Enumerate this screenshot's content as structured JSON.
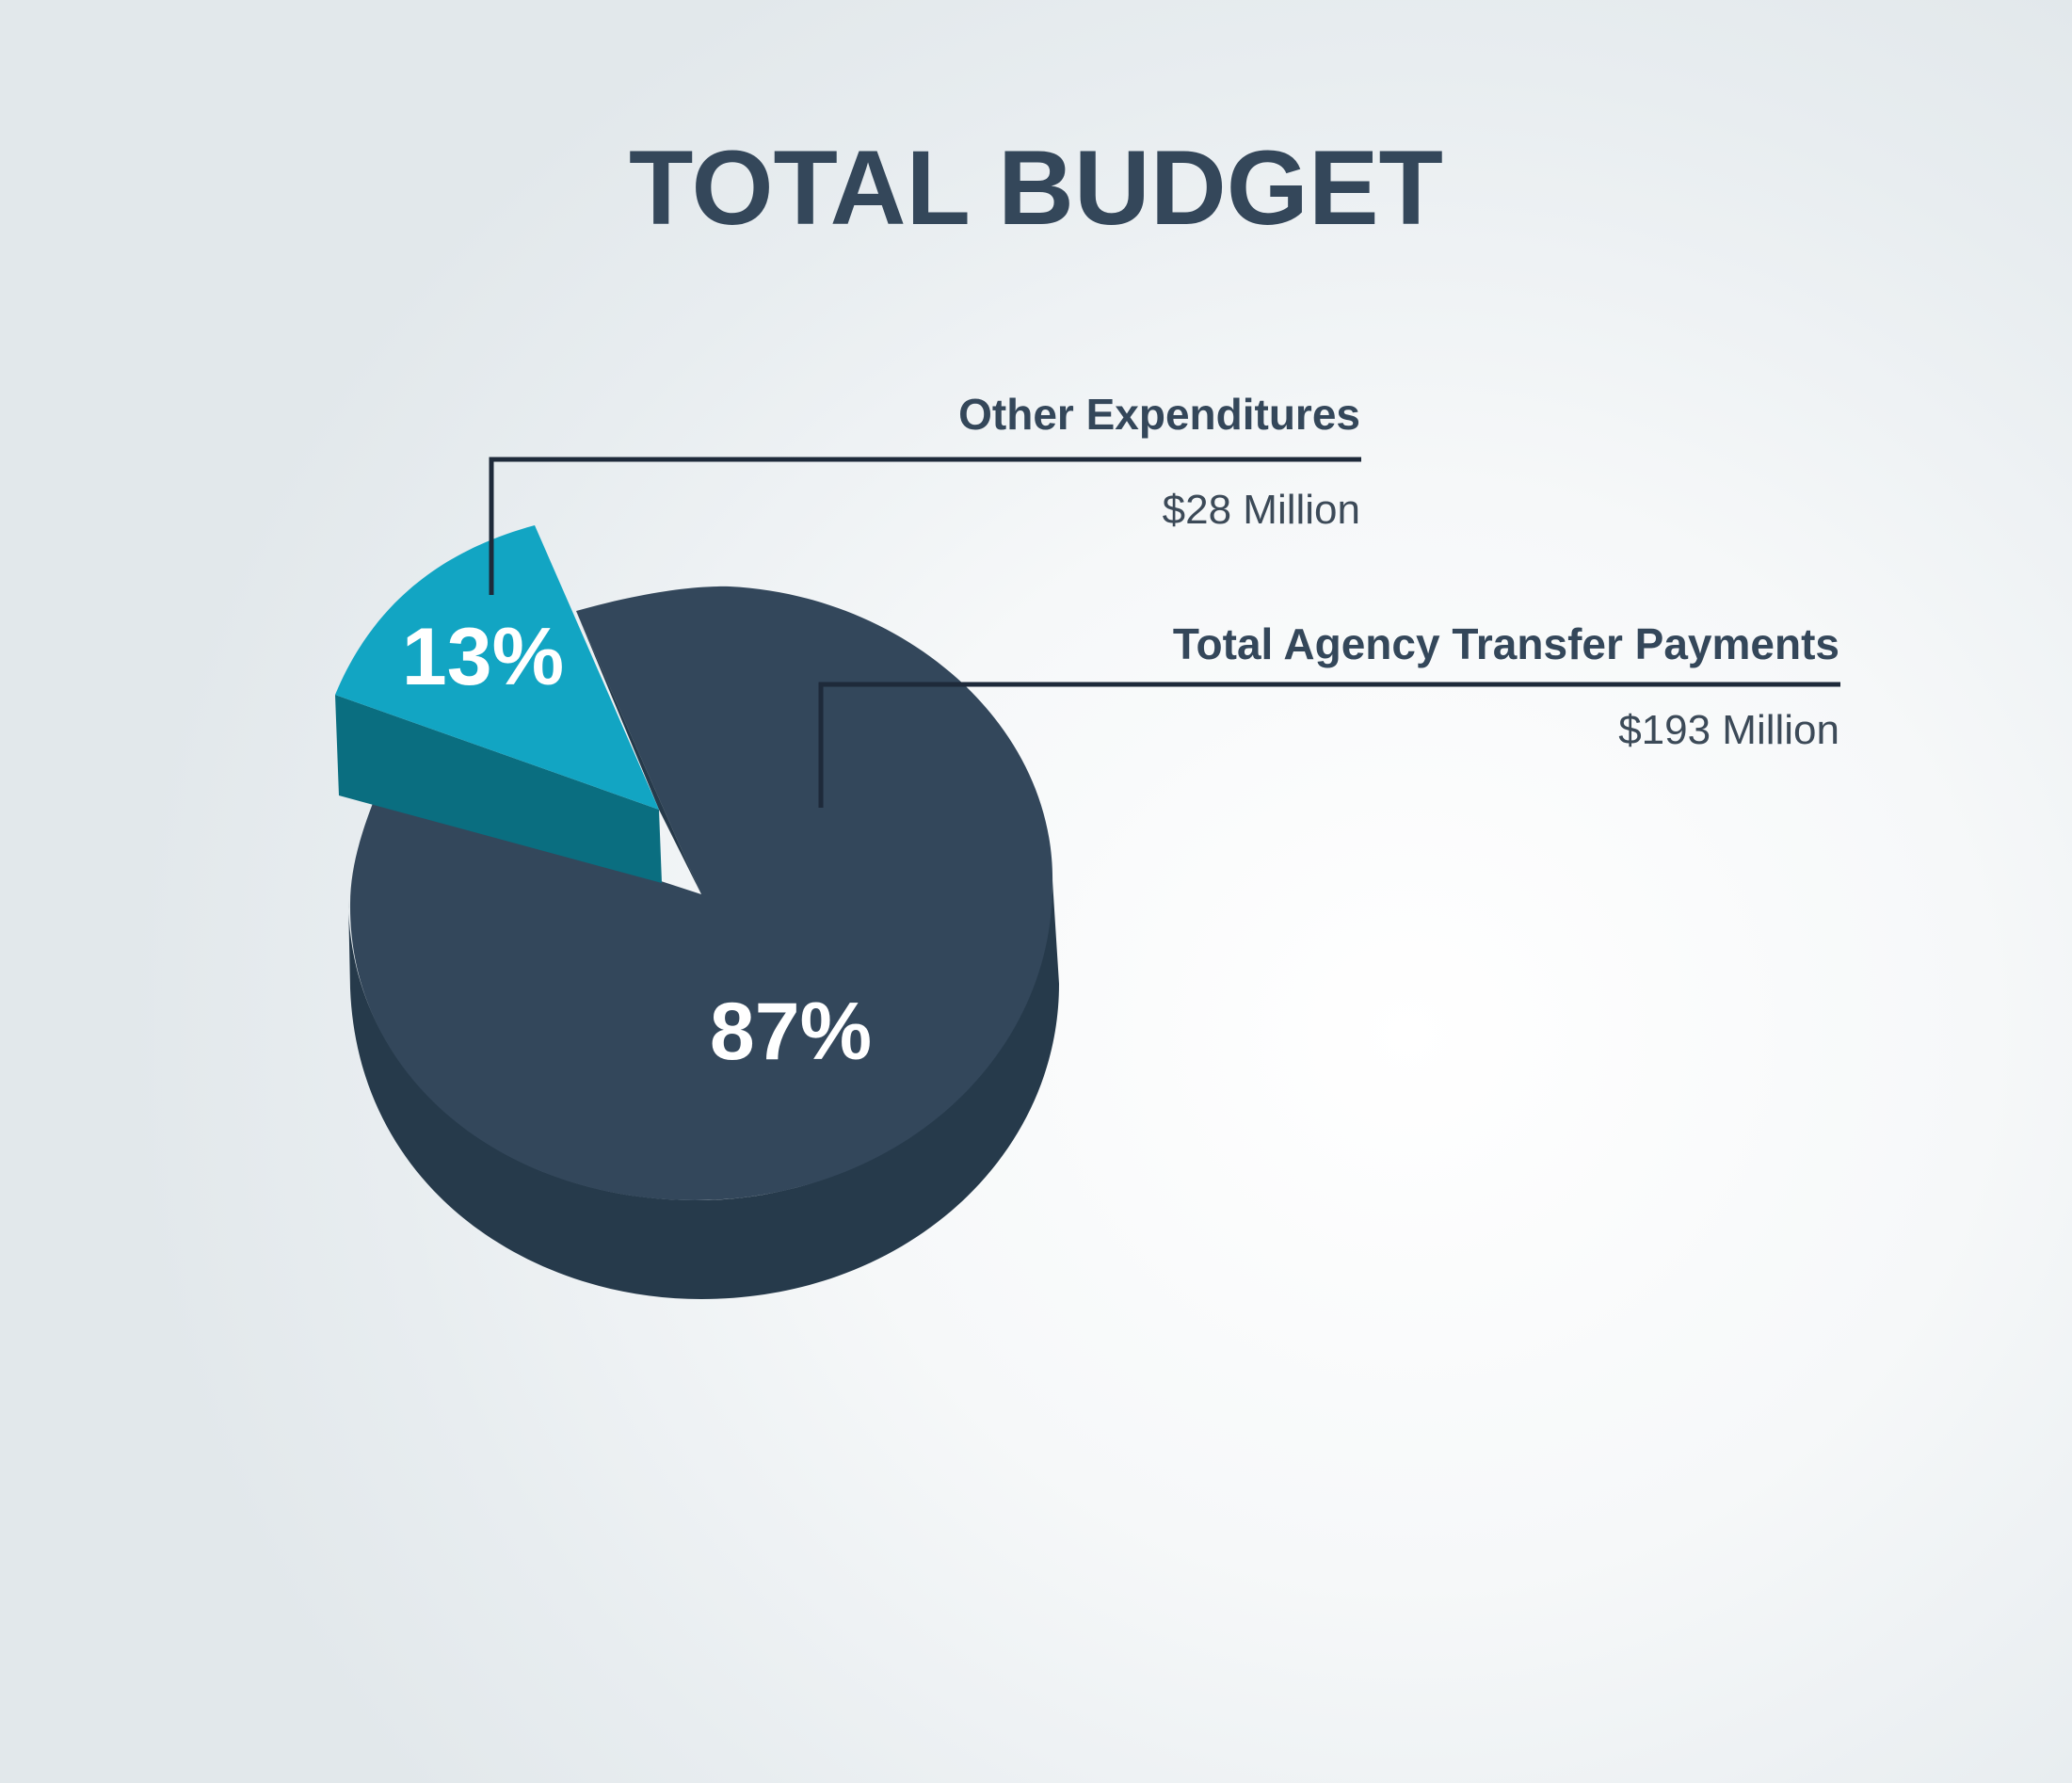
{
  "chart_data": {
    "type": "pie",
    "title": "TOTAL BUDGET",
    "slices": [
      {
        "label": "Other Expenditures",
        "amount": "$28 Million",
        "value": 28,
        "percent_label": "13%",
        "color": "#12a5c3",
        "side_color": "#0a6e80",
        "exploded": true
      },
      {
        "label": "Total Agency Transfer Payments",
        "amount": "$193 Million",
        "value": 193,
        "percent_label": "87%",
        "color": "#33475b",
        "side_color": "#263a4b",
        "exploded": false
      }
    ]
  }
}
